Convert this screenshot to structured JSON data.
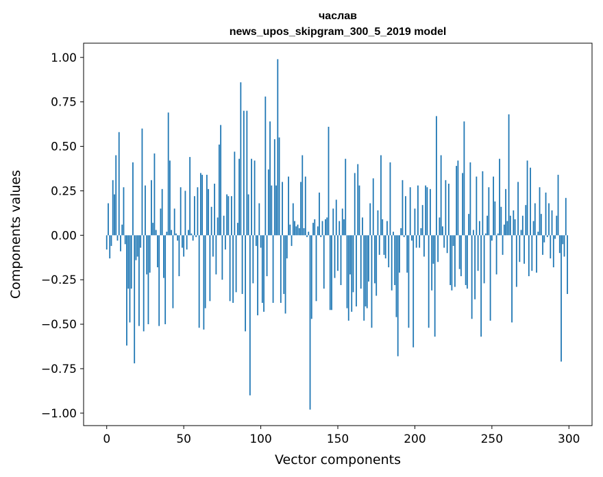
{
  "chart_data": {
    "type": "bar",
    "title": "часлав",
    "subtitle": "news_upos_skipgram_300_5_2019 model",
    "xlabel": "Vector components",
    "ylabel": "Components values",
    "xlim": [
      -15,
      315
    ],
    "ylim": [
      -1.07,
      1.08
    ],
    "xticks": [
      0,
      50,
      100,
      150,
      200,
      250,
      300
    ],
    "yticks": [
      -1.0,
      -0.75,
      -0.5,
      -0.25,
      0.0,
      0.25,
      0.5,
      0.75,
      1.0
    ],
    "ytick_labels": [
      "−1.00",
      "−0.75",
      "−0.50",
      "−0.25",
      "0.00",
      "0.25",
      "0.50",
      "0.75",
      "1.00"
    ],
    "bar_color": "#1f77b4",
    "grid": false,
    "x": [
      0,
      1,
      2,
      3,
      4,
      5,
      6,
      7,
      8,
      9,
      10,
      11,
      12,
      13,
      14,
      15,
      16,
      17,
      18,
      19,
      20,
      21,
      22,
      23,
      24,
      25,
      26,
      27,
      28,
      29,
      30,
      31,
      32,
      33,
      34,
      35,
      36,
      37,
      38,
      39,
      40,
      41,
      42,
      43,
      44,
      45,
      46,
      47,
      48,
      49,
      50,
      51,
      52,
      53,
      54,
      55,
      56,
      57,
      58,
      59,
      60,
      61,
      62,
      63,
      64,
      65,
      66,
      67,
      68,
      69,
      70,
      71,
      72,
      73,
      74,
      75,
      76,
      77,
      78,
      79,
      80,
      81,
      82,
      83,
      84,
      85,
      86,
      87,
      88,
      89,
      90,
      91,
      92,
      93,
      94,
      95,
      96,
      97,
      98,
      99,
      100,
      101,
      102,
      103,
      104,
      105,
      106,
      107,
      108,
      109,
      110,
      111,
      112,
      113,
      114,
      115,
      116,
      117,
      118,
      119,
      120,
      121,
      122,
      123,
      124,
      125,
      126,
      127,
      128,
      129,
      130,
      131,
      132,
      133,
      134,
      135,
      136,
      137,
      138,
      139,
      140,
      141,
      142,
      143,
      144,
      145,
      146,
      147,
      148,
      149,
      150,
      151,
      152,
      153,
      154,
      155,
      156,
      157,
      158,
      159,
      160,
      161,
      162,
      163,
      164,
      165,
      166,
      167,
      168,
      169,
      170,
      171,
      172,
      173,
      174,
      175,
      176,
      177,
      178,
      179,
      180,
      181,
      182,
      183,
      184,
      185,
      186,
      187,
      188,
      189,
      190,
      191,
      192,
      193,
      194,
      195,
      196,
      197,
      198,
      199,
      200,
      201,
      202,
      203,
      204,
      205,
      206,
      207,
      208,
      209,
      210,
      211,
      212,
      213,
      214,
      215,
      216,
      217,
      218,
      219,
      220,
      221,
      222,
      223,
      224,
      225,
      226,
      227,
      228,
      229,
      230,
      231,
      232,
      233,
      234,
      235,
      236,
      237,
      238,
      239,
      240,
      241,
      242,
      243,
      244,
      245,
      246,
      247,
      248,
      249,
      250,
      251,
      252,
      253,
      254,
      255,
      256,
      257,
      258,
      259,
      260,
      261,
      262,
      263,
      264,
      265,
      266,
      267,
      268,
      269,
      270,
      271,
      272,
      273,
      274,
      275,
      276,
      277,
      278,
      279,
      280,
      281,
      282,
      283,
      284,
      285,
      286,
      287,
      288,
      289,
      290,
      291,
      292,
      293,
      294,
      295,
      296,
      297,
      298,
      299
    ],
    "values": [
      -0.08,
      0.18,
      -0.13,
      -0.06,
      0.31,
      0.23,
      0.45,
      -0.03,
      0.58,
      -0.09,
      0.06,
      0.27,
      -0.05,
      -0.62,
      -0.3,
      -0.49,
      -0.3,
      0.41,
      -0.72,
      -0.14,
      -0.12,
      -0.51,
      -0.07,
      0.6,
      -0.54,
      0.28,
      -0.22,
      -0.5,
      -0.21,
      0.31,
      0.07,
      0.46,
      0.03,
      -0.18,
      -0.51,
      0.15,
      0.26,
      -0.24,
      -0.5,
      0.02,
      0.69,
      0.42,
      0.03,
      -0.41,
      0.15,
      0.01,
      -0.03,
      -0.23,
      0.27,
      -0.07,
      -0.12,
      0.25,
      -0.08,
      0.03,
      0.44,
      0.01,
      -0.03,
      0.22,
      -0.01,
      0.27,
      -0.52,
      0.35,
      0.34,
      -0.53,
      -0.41,
      0.34,
      0.26,
      -0.37,
      0.16,
      -0.12,
      0.29,
      -0.22,
      0.1,
      0.51,
      0.62,
      -0.25,
      0.11,
      -0.08,
      0.23,
      0.22,
      -0.37,
      0.22,
      -0.38,
      0.47,
      -0.32,
      0.07,
      0.43,
      0.86,
      -0.33,
      0.7,
      -0.54,
      0.7,
      0.23,
      -0.9,
      0.43,
      -0.27,
      0.42,
      -0.06,
      -0.45,
      0.18,
      -0.07,
      -0.38,
      -0.43,
      0.78,
      -0.23,
      0.37,
      0.64,
      0.28,
      -0.38,
      0.54,
      0.28,
      0.99,
      0.55,
      -0.38,
      0.3,
      -0.33,
      -0.44,
      -0.13,
      0.33,
      0.06,
      -0.06,
      0.18,
      0.08,
      0.05,
      0.06,
      0.04,
      0.3,
      0.45,
      0.04,
      0.33,
      -0.01,
      0.02,
      -0.98,
      -0.47,
      0.07,
      0.09,
      -0.37,
      0.05,
      0.24,
      -0.01,
      0.08,
      -0.3,
      0.09,
      0.1,
      0.61,
      -0.42,
      -0.42,
      0.15,
      -0.24,
      0.2,
      -0.2,
      0.08,
      -0.28,
      0.15,
      0.09,
      0.43,
      -0.41,
      -0.48,
      -0.22,
      -0.43,
      -0.32,
      0.35,
      -0.4,
      0.4,
      0.28,
      -0.3,
      0.1,
      -0.48,
      -0.4,
      -0.41,
      -0.26,
      0.18,
      -0.52,
      0.32,
      -0.27,
      -0.34,
      0.14,
      -0.11,
      0.45,
      0.09,
      -0.11,
      -0.13,
      0.08,
      -0.18,
      0.41,
      -0.31,
      0.02,
      -0.28,
      -0.46,
      -0.68,
      -0.21,
      0.04,
      0.31,
      -0.01,
      0.22,
      -0.21,
      -0.52,
      0.27,
      -0.03,
      -0.63,
      0.15,
      -0.07,
      0.28,
      -0.07,
      0.04,
      0.17,
      -0.12,
      0.28,
      0.27,
      -0.52,
      0.26,
      -0.31,
      -0.16,
      -0.57,
      0.67,
      -0.15,
      0.1,
      0.45,
      0.05,
      -0.07,
      0.31,
      -0.1,
      0.29,
      -0.28,
      -0.31,
      -0.06,
      -0.29,
      0.39,
      0.42,
      -0.19,
      -0.23,
      0.35,
      0.64,
      -0.28,
      -0.3,
      0.12,
      0.41,
      -0.47,
      0.03,
      -0.36,
      0.33,
      -0.2,
      0.08,
      -0.57,
      0.36,
      -0.27,
      0.01,
      0.11,
      0.27,
      -0.48,
      -0.03,
      0.33,
      0.19,
      -0.22,
      0.01,
      0.43,
      0.16,
      -0.11,
      0.06,
      0.26,
      0.08,
      0.68,
      0.11,
      -0.49,
      0.14,
      0.09,
      -0.29,
      0.3,
      -0.15,
      0.03,
      0.11,
      -0.16,
      0.17,
      0.42,
      -0.23,
      0.38,
      -0.2,
      0.08,
      0.18,
      -0.21,
      0.02,
      0.27,
      0.12,
      -0.11,
      -0.04,
      0.24,
      -0.01,
      0.18,
      -0.13,
      0.14,
      -0.18,
      -0.02,
      0.11,
      0.34,
      -0.1,
      -0.71,
      -0.05,
      -0.12,
      0.21,
      -0.33
    ]
  }
}
